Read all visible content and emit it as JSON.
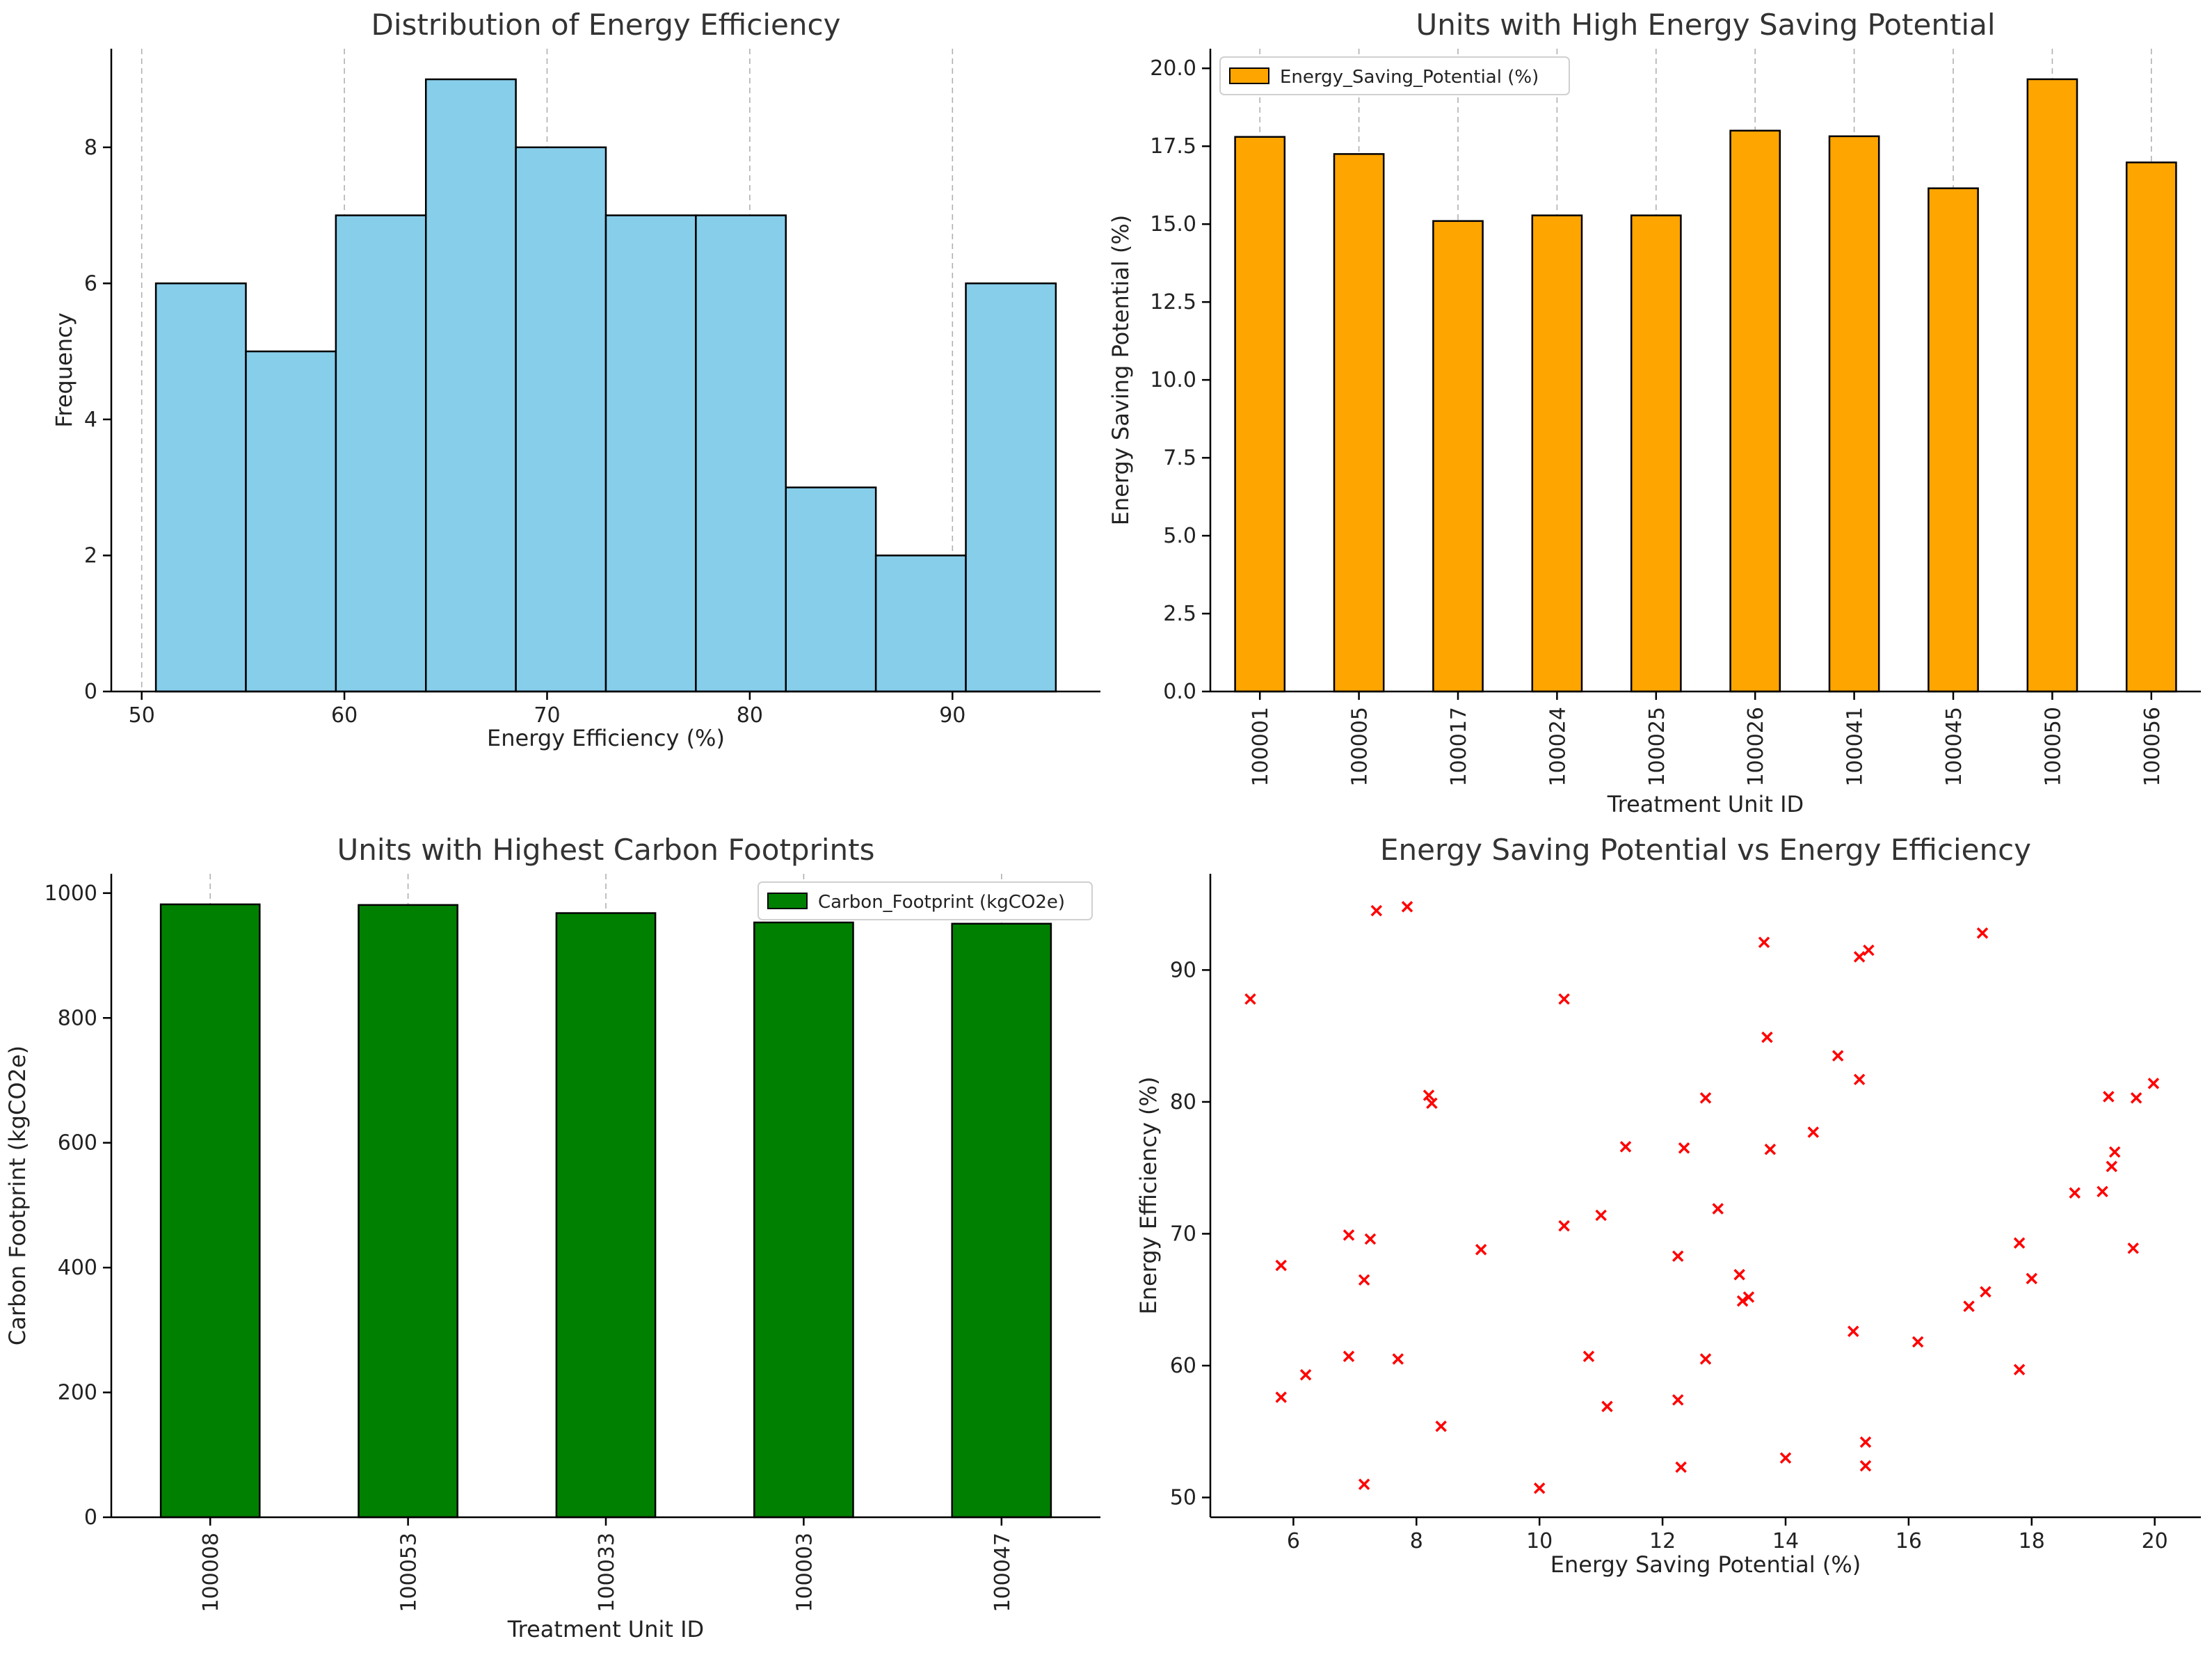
{
  "chart_data": [
    {
      "type": "bar",
      "subtype": "histogram",
      "title": "Distribution of Energy Efficiency",
      "xlabel": "Energy Efficiency (%)",
      "ylabel": "Frequency",
      "bin_edges": [
        50.7,
        55.14,
        59.58,
        64.02,
        68.46,
        72.9,
        77.34,
        81.78,
        86.22,
        90.66,
        95.1
      ],
      "values": [
        6,
        5,
        7,
        9,
        8,
        7,
        7,
        3,
        2,
        6
      ],
      "xlim": [
        48.5,
        97.3
      ],
      "ylim": [
        0,
        9.45
      ],
      "xticks": [
        50,
        60,
        70,
        80,
        90
      ],
      "yticks": [
        0,
        2,
        4,
        6,
        8
      ],
      "color": "#87CEEB",
      "grid": "x"
    },
    {
      "type": "bar",
      "title": "Units with High Energy Saving Potential",
      "xlabel": "Treatment Unit ID",
      "ylabel": "Energy Saving Potential (%)",
      "legend": "Energy_Saving_Potential (%)",
      "categories": [
        "100001",
        "100005",
        "100017",
        "100024",
        "100025",
        "100026",
        "100041",
        "100045",
        "100050",
        "100056"
      ],
      "values": [
        17.8,
        17.25,
        15.1,
        15.28,
        15.28,
        18.0,
        17.82,
        16.15,
        19.65,
        16.98
      ],
      "ylim": [
        0,
        20.63
      ],
      "yticks": [
        "0.0",
        "2.5",
        "5.0",
        "7.5",
        "10.0",
        "12.5",
        "15.0",
        "17.5",
        "20.0"
      ],
      "color": "#FFA500",
      "grid": "x"
    },
    {
      "type": "bar",
      "title": "Units with Highest Carbon Footprints",
      "xlabel": "Treatment Unit ID",
      "ylabel": "Carbon Footprint (kgCO2e)",
      "legend": "Carbon_Footprint (kgCO2e)",
      "categories": [
        "100008",
        "100053",
        "100033",
        "100003",
        "100047"
      ],
      "values": [
        982,
        981,
        968,
        953,
        951
      ],
      "ylim": [
        0,
        1031
      ],
      "yticks": [
        "0",
        "200",
        "400",
        "600",
        "800",
        "1000"
      ],
      "color": "#008000",
      "grid": "x"
    },
    {
      "type": "scatter",
      "title": "Energy Saving Potential vs Energy Efficiency",
      "xlabel": "Energy Saving Potential (%)",
      "ylabel": "Energy Efficiency (%)",
      "xlim": [
        4.65,
        20.75
      ],
      "ylim": [
        48.5,
        97.3
      ],
      "xticks": [
        "6",
        "8",
        "10",
        "12",
        "14",
        "16",
        "18",
        "20"
      ],
      "yticks": [
        "50",
        "60",
        "70",
        "80",
        "90"
      ],
      "marker": "x",
      "color": "#FF0000",
      "points": [
        [
          5.3,
          87.8
        ],
        [
          5.8,
          57.6
        ],
        [
          5.8,
          67.6
        ],
        [
          6.2,
          59.3
        ],
        [
          6.9,
          60.7
        ],
        [
          6.9,
          69.9
        ],
        [
          7.15,
          66.5
        ],
        [
          7.15,
          51.0
        ],
        [
          7.25,
          69.6
        ],
        [
          7.35,
          94.5
        ],
        [
          7.7,
          60.5
        ],
        [
          7.85,
          94.8
        ],
        [
          8.2,
          80.5
        ],
        [
          8.25,
          79.9
        ],
        [
          8.4,
          55.4
        ],
        [
          9.05,
          68.8
        ],
        [
          10.0,
          50.7
        ],
        [
          10.4,
          70.6
        ],
        [
          10.4,
          87.8
        ],
        [
          10.8,
          60.7
        ],
        [
          11.0,
          71.4
        ],
        [
          11.1,
          56.9
        ],
        [
          11.4,
          76.6
        ],
        [
          12.25,
          68.3
        ],
        [
          12.25,
          57.4
        ],
        [
          12.3,
          52.3
        ],
        [
          12.35,
          76.5
        ],
        [
          12.7,
          60.5
        ],
        [
          12.7,
          80.3
        ],
        [
          12.9,
          71.9
        ],
        [
          13.25,
          66.9
        ],
        [
          13.3,
          64.9
        ],
        [
          13.4,
          65.2
        ],
        [
          13.65,
          92.1
        ],
        [
          13.7,
          84.9
        ],
        [
          13.75,
          76.4
        ],
        [
          14.0,
          53.0
        ],
        [
          14.45,
          77.7
        ],
        [
          14.85,
          83.5
        ],
        [
          15.1,
          62.6
        ],
        [
          15.2,
          81.7
        ],
        [
          15.2,
          91.0
        ],
        [
          15.3,
          54.2
        ],
        [
          15.3,
          52.4
        ],
        [
          15.35,
          91.5
        ],
        [
          16.15,
          61.8
        ],
        [
          16.98,
          64.5
        ],
        [
          17.2,
          92.8
        ],
        [
          17.25,
          65.6
        ],
        [
          17.8,
          69.3
        ],
        [
          17.8,
          59.7
        ],
        [
          18.0,
          66.6
        ],
        [
          18.7,
          73.1
        ],
        [
          19.15,
          73.2
        ],
        [
          19.25,
          80.4
        ],
        [
          19.3,
          75.1
        ],
        [
          19.35,
          76.2
        ],
        [
          19.65,
          68.9
        ],
        [
          19.7,
          80.3
        ],
        [
          19.98,
          81.4
        ]
      ]
    }
  ]
}
